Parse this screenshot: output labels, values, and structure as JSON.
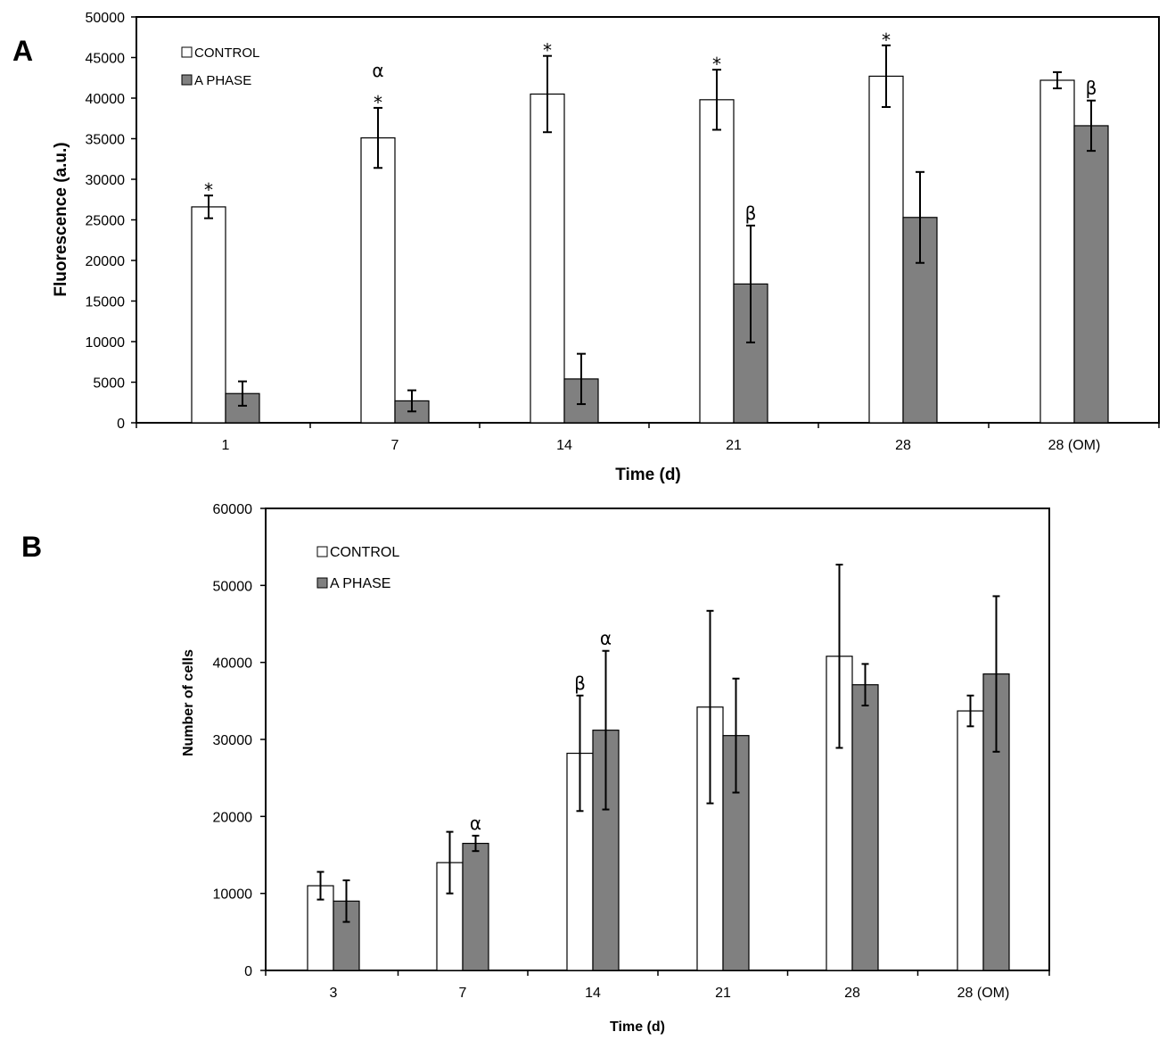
{
  "chart_data": [
    {
      "panel": "A",
      "type": "bar",
      "title": "",
      "xlabel": "Time (d)",
      "ylabel": "Fluorescence (a.u.)",
      "ylim": [
        0,
        50000
      ],
      "yticks": [
        0,
        5000,
        10000,
        15000,
        20000,
        25000,
        30000,
        35000,
        40000,
        45000,
        50000
      ],
      "categories": [
        "1",
        "7",
        "14",
        "21",
        "28",
        "28 (OM)"
      ],
      "legend_position": "top-left",
      "series": [
        {
          "name": "CONTROL",
          "color": "#ffffff",
          "values": [
            26600,
            35100,
            40500,
            39800,
            42700,
            42200
          ],
          "errors": [
            1400,
            3700,
            4700,
            3700,
            3800,
            1000
          ],
          "annotations": [
            "*",
            "α\n*",
            "*",
            "*",
            "*",
            ""
          ]
        },
        {
          "name": "A PHASE",
          "color": "#808080",
          "values": [
            3600,
            2700,
            5400,
            17100,
            25300,
            36600
          ],
          "errors": [
            1500,
            1300,
            3100,
            7200,
            5600,
            3100
          ],
          "annotations": [
            "",
            "",
            "",
            "β",
            "",
            "β"
          ]
        }
      ]
    },
    {
      "panel": "B",
      "type": "bar",
      "title": "",
      "xlabel": "Time (d)",
      "ylabel": "Number of cells",
      "ylim": [
        0,
        60000
      ],
      "yticks": [
        0,
        10000,
        20000,
        30000,
        40000,
        50000,
        60000
      ],
      "categories": [
        "3",
        "7",
        "14",
        "21",
        "28",
        "28 (OM)"
      ],
      "legend_position": "top-left",
      "series": [
        {
          "name": "CONTROL",
          "color": "#ffffff",
          "values": [
            11000,
            14000,
            28200,
            34200,
            40800,
            33700
          ],
          "errors": [
            1800,
            4000,
            7500,
            12500,
            11900,
            2000
          ],
          "annotations": [
            "",
            "",
            "β",
            "",
            "",
            ""
          ]
        },
        {
          "name": "A PHASE",
          "color": "#808080",
          "values": [
            9000,
            16500,
            31200,
            30500,
            37100,
            38500
          ],
          "errors": [
            2700,
            1000,
            10300,
            7400,
            2700,
            10100
          ],
          "annotations": [
            "",
            "α",
            "α",
            "",
            "",
            ""
          ]
        }
      ]
    }
  ]
}
